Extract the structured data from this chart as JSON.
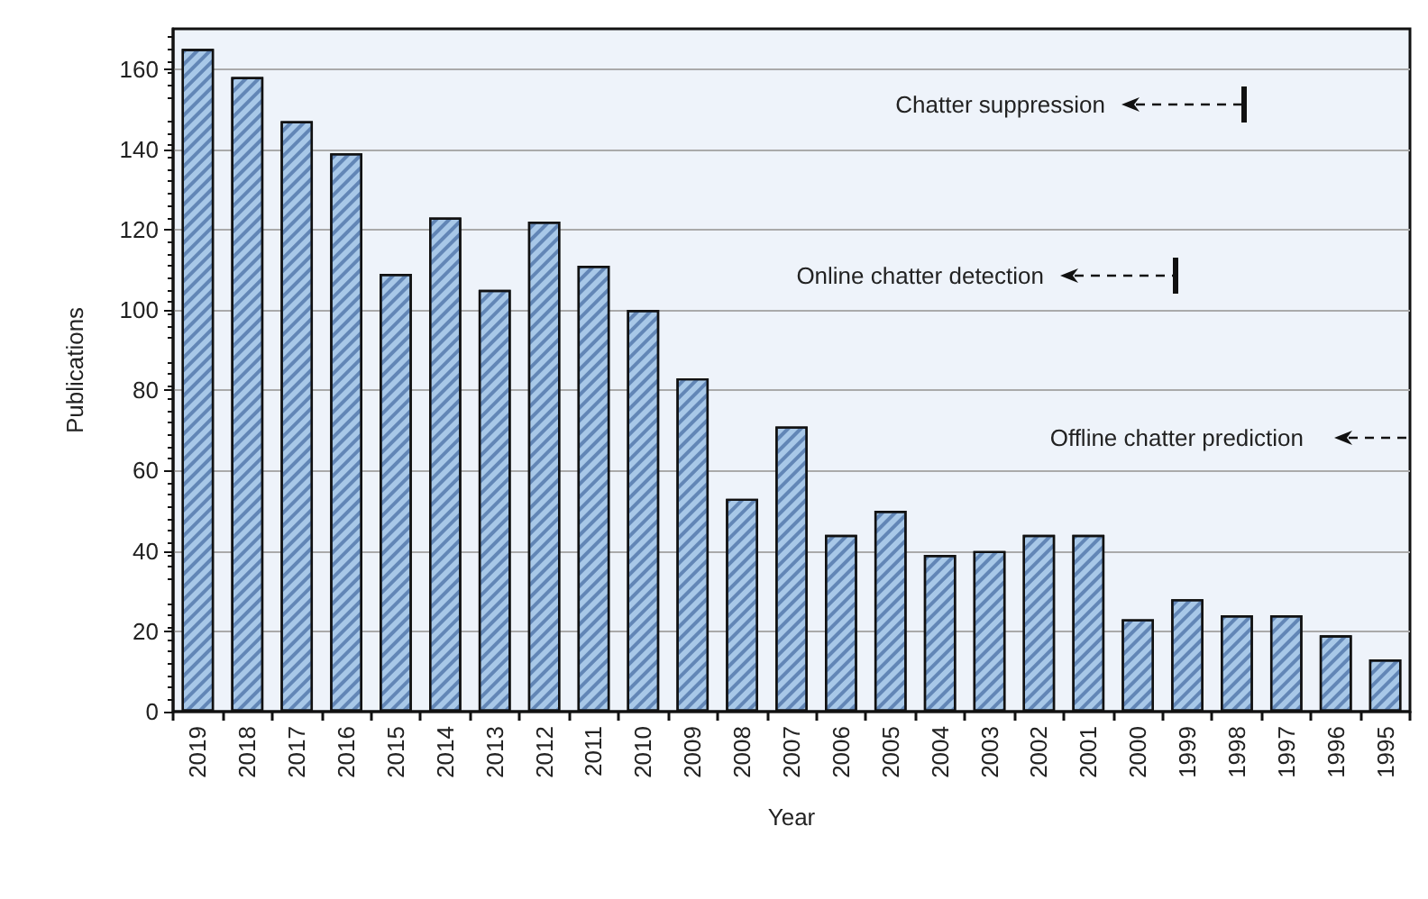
{
  "chart_data": {
    "type": "bar",
    "xlabel": "Year",
    "ylabel": "Publications",
    "categories": [
      "2019",
      "2018",
      "2017",
      "2016",
      "2015",
      "2014",
      "2013",
      "2012",
      "2011",
      "2010",
      "2009",
      "2008",
      "2007",
      "2006",
      "2005",
      "2004",
      "2003",
      "2002",
      "2001",
      "2000",
      "1999",
      "1998",
      "1997",
      "1996",
      "1995"
    ],
    "values": [
      165,
      158,
      147,
      139,
      109,
      123,
      105,
      122,
      111,
      100,
      83,
      53,
      71,
      44,
      50,
      39,
      40,
      44,
      44,
      23,
      28,
      24,
      24,
      19,
      13
    ],
    "color": "#a8c8e8",
    "ylim": [
      0,
      170
    ],
    "yticks": [
      0,
      20,
      40,
      60,
      80,
      100,
      120,
      140,
      160
    ],
    "grid": "y",
    "annotations": [
      "Chatter suppression",
      "Online chatter detection",
      "Offline chatter prediction"
    ]
  }
}
